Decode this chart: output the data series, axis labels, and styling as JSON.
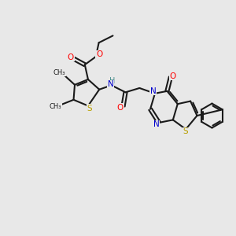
{
  "bg_color": "#e8e8e8",
  "bond_color": "#1a1a1a",
  "colors": {
    "O": "#ff0000",
    "N": "#0000cd",
    "S": "#b8a000",
    "H": "#4a9090",
    "C": "#1a1a1a"
  },
  "figsize": [
    3.0,
    3.0
  ],
  "dpi": 100
}
